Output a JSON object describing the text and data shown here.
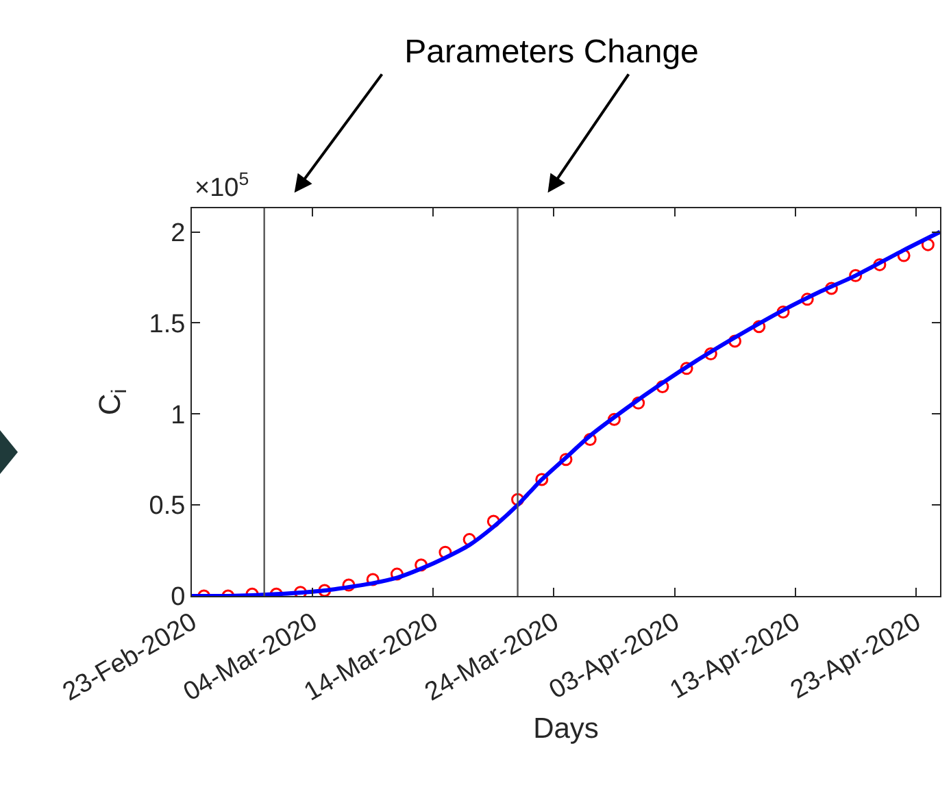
{
  "chart_data": {
    "type": "line",
    "title": "Parameters Change",
    "xlabel": "Days",
    "ylabel": "C$_{i}$",
    "annotations": [
      "×10$^{5}$"
    ],
    "xlim": [
      "2020-02-23",
      "2020-04-25"
    ],
    "xticks": [
      {
        "value": "2020-02-23",
        "label": "23-Feb-2020"
      },
      {
        "value": "2020-03-04",
        "label": "04-Mar-2020"
      },
      {
        "value": "2020-03-14",
        "label": "14-Mar-2020"
      },
      {
        "value": "2020-03-24",
        "label": "24-Mar-2020"
      },
      {
        "value": "2020-04-03",
        "label": "03-Apr-2020"
      },
      {
        "value": "2020-04-13",
        "label": "13-Apr-2020"
      },
      {
        "value": "2020-04-23",
        "label": "23-Apr-2020"
      }
    ],
    "ylim": [
      0,
      2.13
    ],
    "yticks": [
      0,
      0.5,
      1,
      1.5,
      2
    ],
    "grid": false,
    "ref_lines": [
      {
        "axis": "x",
        "value": "2020-02-29",
        "color": "#555555",
        "line_style": "solid"
      },
      {
        "axis": "x",
        "value": "2020-03-21",
        "color": "#555555",
        "line_style": "solid"
      }
    ],
    "series": [
      {
        "type": "scatter",
        "marker": "circle",
        "color": "#ff0000",
        "x": [
          "2020-02-24",
          "2020-02-26",
          "2020-02-28",
          "2020-03-01",
          "2020-03-03",
          "2020-03-05",
          "2020-03-07",
          "2020-03-09",
          "2020-03-11",
          "2020-03-13",
          "2020-03-15",
          "2020-03-17",
          "2020-03-19",
          "2020-03-21",
          "2020-03-23",
          "2020-03-25",
          "2020-03-27",
          "2020-03-29",
          "2020-03-31",
          "2020-04-02",
          "2020-04-04",
          "2020-04-06",
          "2020-04-08",
          "2020-04-10",
          "2020-04-12",
          "2020-04-14",
          "2020-04-16",
          "2020-04-18",
          "2020-04-20",
          "2020-04-22",
          "2020-04-24"
        ],
        "values": [
          0,
          0,
          0.01,
          0.01,
          0.02,
          0.03,
          0.06,
          0.09,
          0.12,
          0.17,
          0.24,
          0.31,
          0.41,
          0.53,
          0.64,
          0.75,
          0.86,
          0.97,
          1.06,
          1.15,
          1.25,
          1.33,
          1.4,
          1.48,
          1.56,
          1.63,
          1.69,
          1.76,
          1.82,
          1.87,
          1.93
        ]
      },
      {
        "marker": "none",
        "line_style": "solid",
        "color": "#0000ff",
        "x": [
          "2020-02-23",
          "2020-02-26",
          "2020-03-01",
          "2020-03-05",
          "2020-03-09",
          "2020-03-11",
          "2020-03-13",
          "2020-03-15",
          "2020-03-17",
          "2020-03-19",
          "2020-03-21",
          "2020-03-22",
          "2020-03-23",
          "2020-03-25",
          "2020-03-27",
          "2020-03-30",
          "2020-04-02",
          "2020-04-05",
          "2020-04-08",
          "2020-04-12",
          "2020-04-15",
          "2020-04-18",
          "2020-04-22",
          "2020-04-25"
        ],
        "values": [
          0,
          0,
          0.01,
          0.03,
          0.07,
          0.1,
          0.15,
          0.21,
          0.28,
          0.38,
          0.5,
          0.57,
          0.64,
          0.76,
          0.88,
          1.03,
          1.17,
          1.3,
          1.42,
          1.57,
          1.67,
          1.76,
          1.9,
          2.0
        ]
      }
    ]
  }
}
